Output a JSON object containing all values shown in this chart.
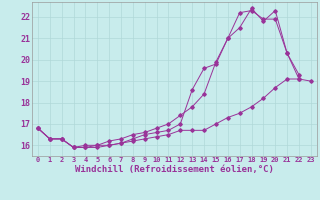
{
  "xlabel": "Windchill (Refroidissement éolien,°C)",
  "background_color": "#c8ecec",
  "grid_color": "#b0d8d8",
  "line_color": "#993399",
  "xlim": [
    -0.5,
    23.5
  ],
  "ylim": [
    15.5,
    22.7
  ],
  "yticks": [
    16,
    17,
    18,
    19,
    20,
    21,
    22
  ],
  "xticks": [
    0,
    1,
    2,
    3,
    4,
    5,
    6,
    7,
    8,
    9,
    10,
    11,
    12,
    13,
    14,
    15,
    16,
    17,
    18,
    19,
    20,
    21,
    22,
    23
  ],
  "series1": [
    16.8,
    16.3,
    16.3,
    15.9,
    16.0,
    16.0,
    16.2,
    16.3,
    16.5,
    16.6,
    16.8,
    17.0,
    17.4,
    17.8,
    18.4,
    19.9,
    21.0,
    21.5,
    22.4,
    21.8,
    22.3,
    20.3,
    19.1,
    null
  ],
  "series2": [
    16.8,
    16.3,
    16.3,
    15.9,
    15.9,
    15.9,
    16.0,
    16.1,
    16.2,
    16.3,
    16.4,
    16.5,
    16.7,
    16.7,
    16.7,
    17.0,
    17.3,
    17.5,
    17.8,
    18.2,
    18.7,
    19.1,
    19.1,
    19.0
  ],
  "series3": [
    16.8,
    16.3,
    16.3,
    15.9,
    15.9,
    16.0,
    16.0,
    16.1,
    16.3,
    16.5,
    16.6,
    16.7,
    17.0,
    18.6,
    19.6,
    19.8,
    21.0,
    22.2,
    22.3,
    21.9,
    21.9,
    20.3,
    19.3,
    null
  ]
}
